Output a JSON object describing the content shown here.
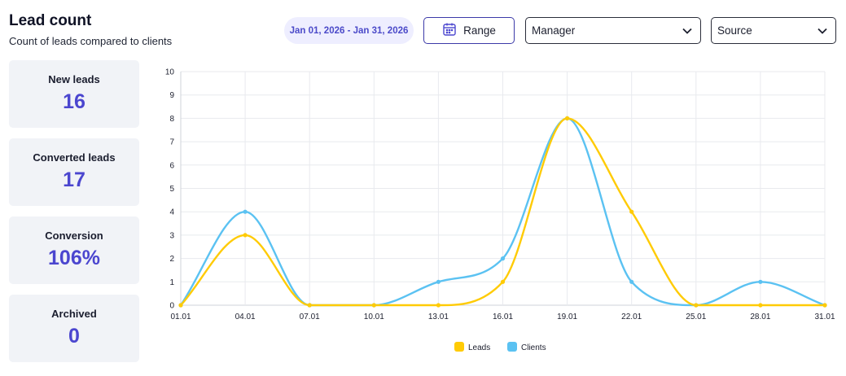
{
  "header": {
    "title": "Lead count",
    "subtitle": "Count of leads compared to clients"
  },
  "toolbar": {
    "date_range": "Jan 01, 2026 - Jan 31, 2026",
    "range_label": "Range",
    "manager_value": "Manager",
    "source_value": "Source"
  },
  "stats": [
    {
      "label": "New leads",
      "value": "16"
    },
    {
      "label": "Converted leads",
      "value": "17"
    },
    {
      "label": "Conversion",
      "value": "106%"
    },
    {
      "label": "Archived",
      "value": "0"
    }
  ],
  "colors": {
    "accent": "#4b46cf",
    "leads": "#ffcb05",
    "clients": "#5bc2f2"
  },
  "chart_data": {
    "type": "line",
    "title": "",
    "xlabel": "",
    "ylabel": "",
    "categories": [
      "01.01",
      "04.01",
      "07.01",
      "10.01",
      "13.01",
      "16.01",
      "19.01",
      "22.01",
      "25.01",
      "28.01",
      "31.01"
    ],
    "series": [
      {
        "name": "Leads",
        "color": "#ffcb05",
        "values": [
          0,
          3,
          0,
          0,
          0,
          1,
          8,
          4,
          0,
          0,
          0
        ]
      },
      {
        "name": "Clients",
        "color": "#5bc2f2",
        "values": [
          0,
          4,
          0,
          0,
          1,
          2,
          8,
          1,
          0,
          1,
          0
        ]
      }
    ],
    "ylim": [
      0,
      10
    ],
    "yticks": [
      0,
      1,
      2,
      3,
      4,
      5,
      6,
      7,
      8,
      9,
      10
    ],
    "grid": true,
    "legend": "bottom-center",
    "smooth": true
  }
}
